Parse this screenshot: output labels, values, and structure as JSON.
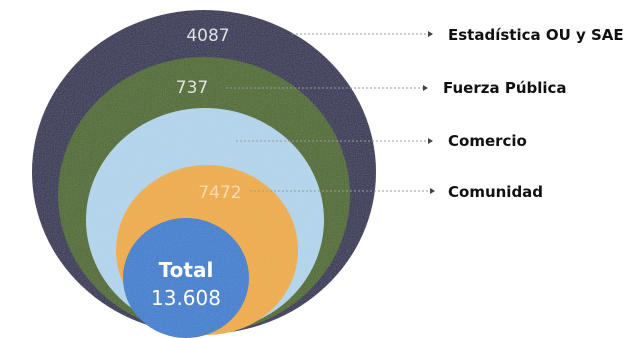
{
  "chart_data": {
    "type": "nested-circle",
    "title": "",
    "layers": [
      {
        "label": "Estadística OU y SAE",
        "value": "4087",
        "color": "#2e2f55"
      },
      {
        "label": "Fuerza Pública",
        "value": "737",
        "color": "#4d6a28"
      },
      {
        "label": "Comercio",
        "value": "",
        "color": "#b4d7ef"
      },
      {
        "label": "Comunidad",
        "value": "7472",
        "color": "#f2ad42"
      }
    ],
    "total": {
      "label": "Total",
      "value": "13.608",
      "color": "#3a7fd2"
    }
  }
}
